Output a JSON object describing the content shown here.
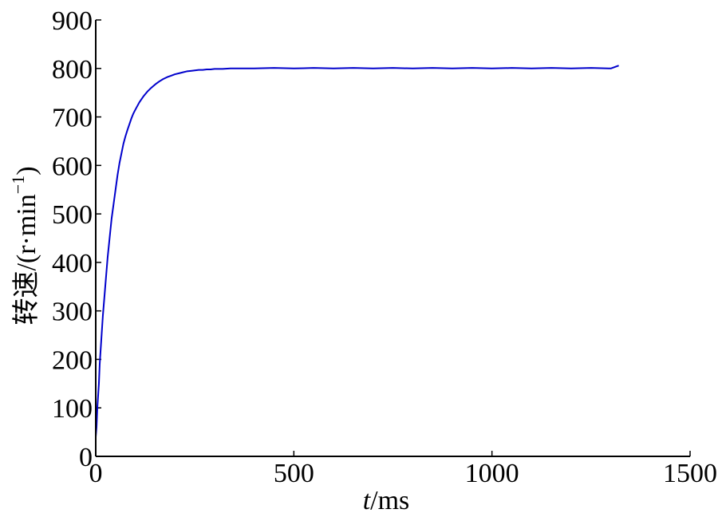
{
  "chart_data": {
    "type": "line",
    "title": "",
    "xlabel_italic": "t",
    "xlabel_rest": "/ms",
    "ylabel_main": "转速/(r·min",
    "ylabel_sup": "−1",
    "ylabel_close": ")",
    "xlim": [
      0,
      1500
    ],
    "ylim": [
      0,
      900
    ],
    "xticks": [
      0,
      500,
      1000,
      1500
    ],
    "xtick_labels": [
      "0",
      "500",
      "1000",
      "1500"
    ],
    "yticks": [
      0,
      100,
      200,
      300,
      400,
      500,
      600,
      700,
      800,
      900
    ],
    "ytick_labels": [
      "0",
      "100",
      "200",
      "300",
      "400",
      "500",
      "600",
      "700",
      "800",
      "900"
    ],
    "grid": false,
    "line_color": "#0000cc",
    "series": [
      {
        "x": [
          0,
          2,
          4,
          8,
          10,
          14,
          18,
          22,
          26,
          30,
          35,
          40,
          45,
          50,
          55,
          60,
          65,
          70,
          75,
          80,
          85,
          90,
          95,
          100,
          110,
          120,
          130,
          140,
          150,
          160,
          170,
          180,
          190,
          200,
          210,
          220,
          230,
          240,
          250,
          260,
          270,
          280,
          290,
          300,
          320,
          340,
          360,
          380,
          400,
          450,
          500,
          550,
          600,
          650,
          700,
          750,
          800,
          850,
          900,
          950,
          1000,
          1050,
          1100,
          1150,
          1200,
          1250,
          1300,
          1320
        ],
        "y": [
          40,
          60,
          100,
          150,
          190,
          240,
          290,
          330,
          370,
          410,
          450,
          490,
          520,
          550,
          580,
          605,
          625,
          645,
          660,
          673,
          685,
          697,
          707,
          715,
          730,
          742,
          752,
          760,
          767,
          773,
          778,
          782,
          785,
          788,
          790,
          792,
          794,
          795,
          796,
          797,
          797,
          798,
          798,
          799,
          799,
          800,
          800,
          800,
          800,
          801,
          800,
          801,
          800,
          801,
          800,
          801,
          800,
          801,
          800,
          801,
          800,
          801,
          800,
          801,
          800,
          801,
          800,
          806
        ]
      }
    ]
  }
}
